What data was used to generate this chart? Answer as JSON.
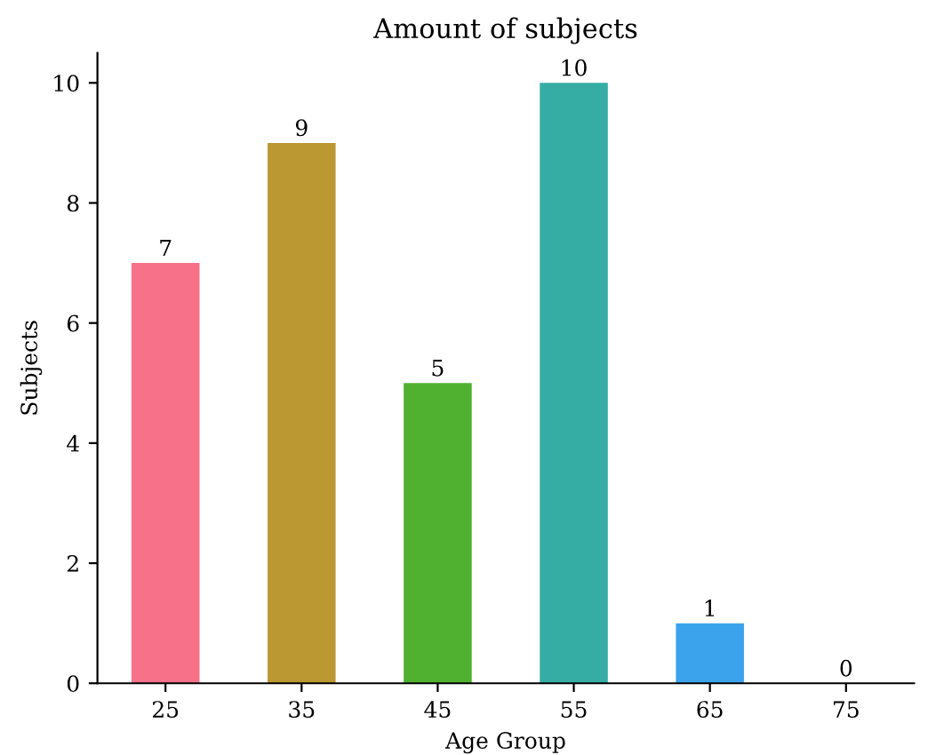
{
  "chart_data": {
    "type": "bar",
    "title": "Amount of subjects",
    "xlabel": "Age Group",
    "ylabel": "Subjects",
    "categories": [
      "25",
      "35",
      "45",
      "55",
      "65",
      "75"
    ],
    "values": [
      7,
      9,
      5,
      10,
      1,
      0
    ],
    "colors": [
      "#f77189",
      "#bb9832",
      "#50b131",
      "#36ada4",
      "#3ba3ec",
      "#e866f4"
    ],
    "ylim": [
      0,
      10.5
    ],
    "yticks": [
      0,
      2,
      4,
      6,
      8,
      10
    ],
    "data_labels": true,
    "grid": false,
    "legend": false
  }
}
